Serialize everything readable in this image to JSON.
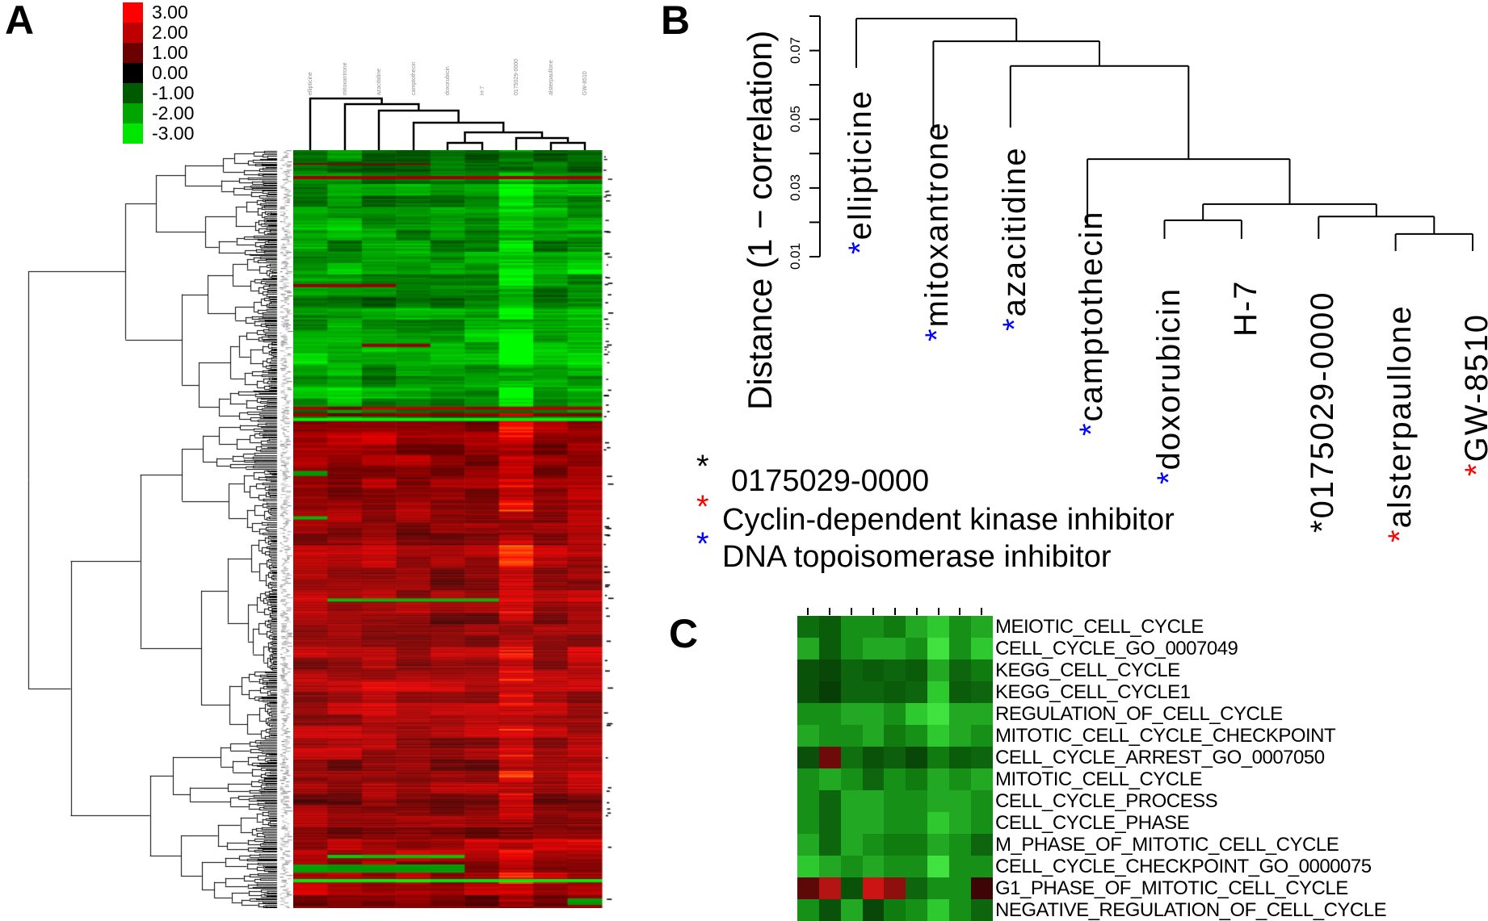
{
  "figure": {
    "panel_a_letter": "A",
    "panel_b_letter": "B",
    "panel_c_letter": "C"
  },
  "colorbar": {
    "labels": [
      "3.00",
      "2.00",
      "1.00",
      "0.00",
      "-1.00",
      "-2.00",
      "-3.00"
    ],
    "colors": [
      "#fe0000",
      "#bf0000",
      "#6a0000",
      "#000000",
      "#005a00",
      "#00a500",
      "#00e600"
    ]
  },
  "drugs": [
    {
      "name": "ellipticine",
      "marker": "blue"
    },
    {
      "name": "mitoxantrone",
      "marker": "blue"
    },
    {
      "name": "azacitidine",
      "marker": "blue"
    },
    {
      "name": "camptothecin",
      "marker": "blue"
    },
    {
      "name": "doxorubicin",
      "marker": "blue"
    },
    {
      "name": "H-7",
      "marker": "none"
    },
    {
      "name": "0175029-0000",
      "marker": "black"
    },
    {
      "name": "alsterpaullone",
      "marker": "red"
    },
    {
      "name": "GW-8510",
      "marker": "red"
    }
  ],
  "marker_colors": {
    "blue": "#0000ff",
    "red": "#ff0000",
    "black": "#000000"
  },
  "panel_b": {
    "axis_label": "Distance (1 − correlation)",
    "tick_labels": [
      "0.07",
      "0.05",
      "0.03",
      "0.01"
    ],
    "legend": [
      {
        "symbol": "*",
        "marker": "black",
        "text": "0175029-0000"
      },
      {
        "symbol": "*",
        "marker": "red",
        "text": "Cyclin-dependent kinase inhibitor"
      },
      {
        "symbol": "*",
        "marker": "blue",
        "text": "DNA topoisomerase inhibitor"
      }
    ]
  },
  "panel_c": {
    "rows": [
      {
        "label": "MEIOTIC_CELL_CYCLE",
        "colors": [
          "#0d6e0d",
          "#0a5c0a",
          "#169016",
          "#169016",
          "#107c10",
          "#23a823",
          "#2ec92e",
          "#169016",
          "#23a823"
        ]
      },
      {
        "label": "CELL_CYCLE_GO_0007049",
        "colors": [
          "#23a823",
          "#0a5c0a",
          "#169016",
          "#23a823",
          "#23a823",
          "#169016",
          "#3fe23f",
          "#169016",
          "#2ec92e"
        ]
      },
      {
        "label": "KEGG_CELL_CYCLE",
        "colors": [
          "#0a520a",
          "#084708",
          "#0d660d",
          "#0a5c0a",
          "#0d660d",
          "#0a5c0a",
          "#23a823",
          "#0d660d",
          "#107c10"
        ]
      },
      {
        "label": "KEGG_CELL_CYCLE1",
        "colors": [
          "#0a520a",
          "#073e07",
          "#0d660d",
          "#0d660d",
          "#0a5c0a",
          "#0d660d",
          "#2ec92e",
          "#0a5c0a",
          "#0d660d"
        ]
      },
      {
        "label": "REGULATION_OF_CELL_CYCLE",
        "colors": [
          "#169016",
          "#169016",
          "#23a823",
          "#23a823",
          "#169016",
          "#2ec92e",
          "#3fe23f",
          "#23a823",
          "#23a823"
        ]
      },
      {
        "label": "MITOTIC_CELL_CYCLE_CHECKPOINT",
        "colors": [
          "#23a823",
          "#169016",
          "#169016",
          "#23a823",
          "#107c10",
          "#169016",
          "#2ec92e",
          "#23a823",
          "#169016"
        ]
      },
      {
        "label": "CELL_CYCLE_ARREST_GO_0007050",
        "colors": [
          "#0a4f0a",
          "#6e0a0a",
          "#107010",
          "#0a520a",
          "#0d5e0d",
          "#084708",
          "#107c10",
          "#0a5c0a",
          "#0d660d"
        ]
      },
      {
        "label": "MITOTIC_CELL_CYCLE",
        "colors": [
          "#169016",
          "#23a823",
          "#169016",
          "#0d660d",
          "#169016",
          "#107c10",
          "#23a823",
          "#169016",
          "#23a823"
        ]
      },
      {
        "label": "CELL_CYCLE_PROCESS",
        "colors": [
          "#169016",
          "#0d660d",
          "#23a823",
          "#23a823",
          "#169016",
          "#169016",
          "#23a823",
          "#23a823",
          "#169016"
        ]
      },
      {
        "label": "CELL_CYCLE_PHASE",
        "colors": [
          "#169016",
          "#0d660d",
          "#23a823",
          "#23a823",
          "#169016",
          "#169016",
          "#2ec92e",
          "#23a823",
          "#169016"
        ]
      },
      {
        "label": "M_PHASE_OF_MITOTIC_CELL_CYCLE",
        "colors": [
          "#23a823",
          "#0d660d",
          "#23a823",
          "#169016",
          "#107c10",
          "#107c10",
          "#23a823",
          "#169016",
          "#0d660d"
        ]
      },
      {
        "label": "CELL_CYCLE_CHECKPOINT_GO_0000075",
        "colors": [
          "#2ec92e",
          "#23a823",
          "#169016",
          "#23a823",
          "#169016",
          "#169016",
          "#3fe23f",
          "#169016",
          "#169016"
        ]
      },
      {
        "label": "G1_PHASE_OF_MITOTIC_CELL_CYCLE",
        "colors": [
          "#5e0808",
          "#b51414",
          "#0a520a",
          "#cc1414",
          "#8f0f0f",
          "#0d660d",
          "#169016",
          "#169016",
          "#3d0505"
        ]
      },
      {
        "label": "NEGATIVE_REGULATION_OF_CELL_CYCLE",
        "colors": [
          "#169016",
          "#0a520a",
          "#23a823",
          "#084708",
          "#107c10",
          "#169016",
          "#2ec92e",
          "#169016",
          "#0d660d"
        ]
      }
    ]
  },
  "chart_data": [
    {
      "type": "heatmap",
      "id": "A",
      "title": "Hierarchically clustered gene-expression heatmap (genes x drugs)",
      "columns": [
        "ellipticine",
        "mitoxantrone",
        "azacitidine",
        "camptothecin",
        "doxorubicin",
        "H-7",
        "0175029-0000",
        "alsterpaullone",
        "GW-8510"
      ],
      "rows": "approx. 470 unlabeled gene rows with row dendrogram on left",
      "colorscale_ticks": [
        3.0,
        2.0,
        1.0,
        0.0,
        -1.0,
        -2.0,
        -3.0
      ],
      "colorscale_range": [
        "#00e600 (-3)",
        "#000000 (0)",
        "#fe0000 (+3)"
      ],
      "pattern": "top ~36% of gene rows predominantly green (down-regulated), bottom ~64% predominantly red (up-regulated); column 0175029-0000 brightest in both halves; scattered opposite-color streak rows including a full-width bright-green row near the bottom"
    },
    {
      "type": "dendrogram",
      "id": "B",
      "ylabel": "Distance (1 − correlation)",
      "yticks": [
        0.01,
        0.03,
        0.05,
        0.07
      ],
      "leaves": [
        "ellipticine",
        "mitoxantrone",
        "azacitidine",
        "camptothecin",
        "doxorubicin",
        "H-7",
        "0175029-0000",
        "alsterpaullone",
        "GW-8510"
      ],
      "leaf_markers": {
        "ellipticine": "blue",
        "mitoxantrone": "blue",
        "azacitidine": "blue",
        "camptothecin": "blue",
        "doxorubicin": "blue",
        "H-7": "none",
        "0175029-0000": "black",
        "alsterpaullone": "red",
        "GW-8510": "red"
      },
      "merges": [
        {
          "id": "M0",
          "a": "L7",
          "b": "L8",
          "height": 0.0166
        },
        {
          "id": "M1",
          "a": "L6",
          "b": "M0",
          "height": 0.0217
        },
        {
          "id": "M2",
          "a": "L4",
          "b": "L5",
          "height": 0.0206
        },
        {
          "id": "M3",
          "a": "M2",
          "b": "M1",
          "height": 0.0253
        },
        {
          "id": "M4",
          "a": "L3",
          "b": "M3",
          "height": 0.0384
        },
        {
          "id": "M5",
          "a": "L2",
          "b": "M4",
          "height": 0.0655
        },
        {
          "id": "M6",
          "a": "L1",
          "b": "M5",
          "height": 0.0727
        },
        {
          "id": "M7",
          "a": "L0",
          "b": "M6",
          "height": 0.0793
        }
      ]
    },
    {
      "type": "heatmap",
      "id": "C",
      "columns": [
        "ellipticine",
        "mitoxantrone",
        "azacitidine",
        "camptothecin",
        "doxorubicin",
        "H-7",
        "0175029-0000",
        "alsterpaullone",
        "GW-8510"
      ],
      "rows": [
        "MEIOTIC_CELL_CYCLE",
        "CELL_CYCLE_GO_0007049",
        "KEGG_CELL_CYCLE",
        "KEGG_CELL_CYCLE1",
        "REGULATION_OF_CELL_CYCLE",
        "MITOTIC_CELL_CYCLE_CHECKPOINT",
        "CELL_CYCLE_ARREST_GO_0007050",
        "MITOTIC_CELL_CYCLE",
        "CELL_CYCLE_PROCESS",
        "CELL_CYCLE_PHASE",
        "M_PHASE_OF_MITOTIC_CELL_CYCLE",
        "CELL_CYCLE_CHECKPOINT_GO_0000075",
        "G1_PHASE_OF_MITOTIC_CELL_CYCLE",
        "NEGATIVE_REGULATION_OF_CELL_CYCLE"
      ],
      "values": [
        [
          -1.0,
          -0.8,
          -1.4,
          -1.4,
          -1.1,
          -1.8,
          -2.2,
          -1.4,
          -1.8
        ],
        [
          -1.8,
          -0.8,
          -1.4,
          -1.8,
          -1.8,
          -1.4,
          -2.6,
          -1.4,
          -2.2
        ],
        [
          -0.7,
          -0.55,
          -0.9,
          -0.8,
          -0.9,
          -0.8,
          -1.8,
          -0.9,
          -1.1
        ],
        [
          -0.7,
          -0.5,
          -0.9,
          -0.9,
          -0.8,
          -0.9,
          -2.2,
          -0.8,
          -0.9
        ],
        [
          -1.4,
          -1.4,
          -1.8,
          -1.8,
          -1.4,
          -2.2,
          -2.6,
          -1.8,
          -1.8
        ],
        [
          -1.8,
          -1.4,
          -1.4,
          -1.8,
          -1.1,
          -1.4,
          -2.2,
          -1.8,
          -1.4
        ],
        [
          -0.65,
          1.3,
          -1.0,
          -0.7,
          -0.85,
          -0.55,
          -1.1,
          -0.8,
          -0.9
        ],
        [
          -1.4,
          -1.8,
          -1.4,
          -0.9,
          -1.4,
          -1.1,
          -1.8,
          -1.4,
          -1.8
        ],
        [
          -1.4,
          -0.9,
          -1.8,
          -1.8,
          -1.4,
          -1.4,
          -1.8,
          -1.8,
          -1.4
        ],
        [
          -1.4,
          -0.9,
          -1.8,
          -1.8,
          -1.4,
          -1.4,
          -2.2,
          -1.8,
          -1.4
        ],
        [
          -1.8,
          -0.9,
          -1.8,
          -1.4,
          -1.1,
          -1.1,
          -1.8,
          -1.4,
          -0.9
        ],
        [
          -2.2,
          -1.8,
          -1.4,
          -1.8,
          -1.4,
          -1.4,
          -2.6,
          -1.4,
          -1.4
        ],
        [
          1.1,
          2.2,
          -0.7,
          2.5,
          1.7,
          -0.9,
          -1.4,
          -1.4,
          0.7
        ],
        [
          -1.4,
          -0.7,
          -1.8,
          -0.55,
          -1.1,
          -1.4,
          -2.2,
          -1.4,
          -0.9
        ]
      ]
    }
  ]
}
